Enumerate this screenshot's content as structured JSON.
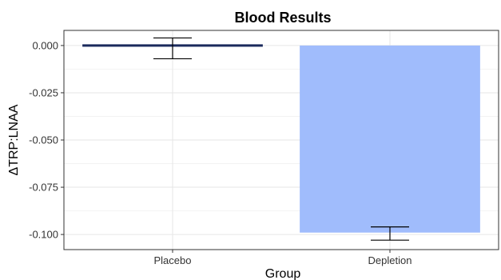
{
  "chart_data": {
    "type": "bar",
    "title": "Blood Results",
    "xlabel": "Group",
    "ylabel": "ΔTRP:LNAA",
    "categories": [
      "Placebo",
      "Depletion"
    ],
    "values": [
      -0.001,
      -0.099
    ],
    "error_bars": [
      {
        "low": -0.007,
        "high": 0.004
      },
      {
        "low": -0.103,
        "high": -0.096
      }
    ],
    "bar_colors": [
      "#1a2a5c",
      "#a0bcfc"
    ],
    "ylim": [
      -0.108,
      0.008
    ],
    "yticks": [
      0.0,
      -0.025,
      -0.05,
      -0.075,
      -0.1
    ],
    "ytick_labels": [
      "0.000",
      "-0.025",
      "-0.050",
      "-0.075",
      "-0.100"
    ],
    "grid": true,
    "legend": "none"
  }
}
